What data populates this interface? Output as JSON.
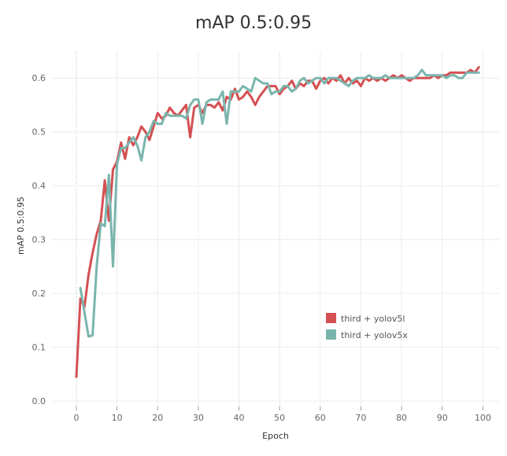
{
  "chart_data": {
    "type": "line",
    "title": "mAP 0.5:0.95",
    "xlabel": "Epoch",
    "ylabel": "mAP 0.5:0.95",
    "xlim": [
      -6,
      104
    ],
    "ylim": [
      -0.01,
      0.65
    ],
    "xticks": [
      0,
      10,
      20,
      30,
      40,
      50,
      60,
      70,
      80,
      90,
      100
    ],
    "yticks": [
      0.0,
      0.1,
      0.2,
      0.3,
      0.4,
      0.5,
      0.6
    ],
    "grid": true,
    "legend_position": "right",
    "series": [
      {
        "name": "third + yolov5l",
        "color": "#d45052",
        "points": [
          [
            0,
            0.045
          ],
          [
            1,
            0.19
          ],
          [
            2,
            0.175
          ],
          [
            3,
            0.235
          ],
          [
            4,
            0.275
          ],
          [
            5,
            0.31
          ],
          [
            6,
            0.335
          ],
          [
            7,
            0.41
          ],
          [
            8,
            0.335
          ],
          [
            9,
            0.43
          ],
          [
            10,
            0.445
          ],
          [
            11,
            0.48
          ],
          [
            12,
            0.45
          ],
          [
            13,
            0.49
          ],
          [
            14,
            0.475
          ],
          [
            15,
            0.49
          ],
          [
            16,
            0.51
          ],
          [
            17,
            0.5
          ],
          [
            18,
            0.485
          ],
          [
            19,
            0.51
          ],
          [
            20,
            0.535
          ],
          [
            21,
            0.525
          ],
          [
            22,
            0.53
          ],
          [
            23,
            0.545
          ],
          [
            24,
            0.535
          ],
          [
            25,
            0.53
          ],
          [
            26,
            0.54
          ],
          [
            27,
            0.55
          ],
          [
            28,
            0.49
          ],
          [
            29,
            0.545
          ],
          [
            30,
            0.55
          ],
          [
            31,
            0.535
          ],
          [
            32,
            0.55
          ],
          [
            33,
            0.55
          ],
          [
            34,
            0.545
          ],
          [
            35,
            0.555
          ],
          [
            36,
            0.54
          ],
          [
            37,
            0.565
          ],
          [
            38,
            0.56
          ],
          [
            39,
            0.58
          ],
          [
            40,
            0.56
          ],
          [
            41,
            0.565
          ],
          [
            42,
            0.575
          ],
          [
            43,
            0.565
          ],
          [
            44,
            0.55
          ],
          [
            45,
            0.565
          ],
          [
            46,
            0.575
          ],
          [
            47,
            0.585
          ],
          [
            48,
            0.585
          ],
          [
            49,
            0.585
          ],
          [
            50,
            0.57
          ],
          [
            51,
            0.58
          ],
          [
            52,
            0.585
          ],
          [
            53,
            0.595
          ],
          [
            54,
            0.58
          ],
          [
            55,
            0.59
          ],
          [
            56,
            0.585
          ],
          [
            57,
            0.595
          ],
          [
            58,
            0.595
          ],
          [
            59,
            0.58
          ],
          [
            60,
            0.595
          ],
          [
            61,
            0.6
          ],
          [
            62,
            0.59
          ],
          [
            63,
            0.6
          ],
          [
            64,
            0.595
          ],
          [
            65,
            0.605
          ],
          [
            66,
            0.59
          ],
          [
            67,
            0.6
          ],
          [
            68,
            0.59
          ],
          [
            69,
            0.595
          ],
          [
            70,
            0.585
          ],
          [
            71,
            0.6
          ],
          [
            72,
            0.595
          ],
          [
            73,
            0.6
          ],
          [
            74,
            0.595
          ],
          [
            75,
            0.6
          ],
          [
            76,
            0.595
          ],
          [
            77,
            0.6
          ],
          [
            78,
            0.605
          ],
          [
            79,
            0.6
          ],
          [
            80,
            0.605
          ],
          [
            81,
            0.6
          ],
          [
            82,
            0.595
          ],
          [
            83,
            0.6
          ],
          [
            84,
            0.6
          ],
          [
            85,
            0.6
          ],
          [
            86,
            0.6
          ],
          [
            87,
            0.6
          ],
          [
            88,
            0.605
          ],
          [
            89,
            0.6
          ],
          [
            90,
            0.605
          ],
          [
            91,
            0.605
          ],
          [
            92,
            0.61
          ],
          [
            93,
            0.61
          ],
          [
            94,
            0.61
          ],
          [
            95,
            0.61
          ],
          [
            96,
            0.61
          ],
          [
            97,
            0.615
          ],
          [
            98,
            0.61
          ],
          [
            99,
            0.62
          ]
        ]
      },
      {
        "name": "third + yolov5x",
        "color": "#7ab5ad",
        "points": [
          [
            1,
            0.21
          ],
          [
            2,
            0.165
          ],
          [
            3,
            0.12
          ],
          [
            4,
            0.122
          ],
          [
            5,
            0.25
          ],
          [
            6,
            0.33
          ],
          [
            7,
            0.325
          ],
          [
            8,
            0.42
          ],
          [
            9,
            0.25
          ],
          [
            10,
            0.44
          ],
          [
            11,
            0.47
          ],
          [
            12,
            0.47
          ],
          [
            13,
            0.48
          ],
          [
            14,
            0.49
          ],
          [
            15,
            0.475
          ],
          [
            16,
            0.447
          ],
          [
            17,
            0.49
          ],
          [
            18,
            0.5
          ],
          [
            19,
            0.52
          ],
          [
            20,
            0.515
          ],
          [
            21,
            0.515
          ],
          [
            22,
            0.535
          ],
          [
            23,
            0.53
          ],
          [
            24,
            0.53
          ],
          [
            25,
            0.53
          ],
          [
            26,
            0.53
          ],
          [
            27,
            0.525
          ],
          [
            28,
            0.55
          ],
          [
            29,
            0.56
          ],
          [
            30,
            0.56
          ],
          [
            31,
            0.515
          ],
          [
            32,
            0.555
          ],
          [
            33,
            0.56
          ],
          [
            34,
            0.56
          ],
          [
            35,
            0.56
          ],
          [
            36,
            0.575
          ],
          [
            37,
            0.515
          ],
          [
            38,
            0.575
          ],
          [
            39,
            0.575
          ],
          [
            40,
            0.575
          ],
          [
            41,
            0.585
          ],
          [
            42,
            0.58
          ],
          [
            43,
            0.575
          ],
          [
            44,
            0.6
          ],
          [
            45,
            0.595
          ],
          [
            46,
            0.59
          ],
          [
            47,
            0.59
          ],
          [
            48,
            0.57
          ],
          [
            49,
            0.575
          ],
          [
            50,
            0.575
          ],
          [
            51,
            0.585
          ],
          [
            52,
            0.585
          ],
          [
            53,
            0.575
          ],
          [
            54,
            0.58
          ],
          [
            55,
            0.595
          ],
          [
            56,
            0.6
          ],
          [
            57,
            0.59
          ],
          [
            58,
            0.595
          ],
          [
            59,
            0.6
          ],
          [
            60,
            0.6
          ],
          [
            61,
            0.59
          ],
          [
            62,
            0.6
          ],
          [
            63,
            0.6
          ],
          [
            64,
            0.6
          ],
          [
            65,
            0.595
          ],
          [
            66,
            0.59
          ],
          [
            67,
            0.585
          ],
          [
            68,
            0.595
          ],
          [
            69,
            0.6
          ],
          [
            70,
            0.6
          ],
          [
            71,
            0.6
          ],
          [
            72,
            0.605
          ],
          [
            73,
            0.6
          ],
          [
            74,
            0.6
          ],
          [
            75,
            0.6
          ],
          [
            76,
            0.605
          ],
          [
            77,
            0.6
          ],
          [
            78,
            0.6
          ],
          [
            79,
            0.6
          ],
          [
            80,
            0.6
          ],
          [
            81,
            0.6
          ],
          [
            82,
            0.6
          ],
          [
            83,
            0.6
          ],
          [
            84,
            0.605
          ],
          [
            85,
            0.615
          ],
          [
            86,
            0.605
          ],
          [
            87,
            0.605
          ],
          [
            88,
            0.605
          ],
          [
            89,
            0.605
          ],
          [
            90,
            0.605
          ],
          [
            91,
            0.6
          ],
          [
            92,
            0.605
          ],
          [
            93,
            0.605
          ],
          [
            94,
            0.6
          ],
          [
            95,
            0.6
          ],
          [
            96,
            0.61
          ],
          [
            97,
            0.61
          ],
          [
            98,
            0.61
          ],
          [
            99,
            0.61
          ]
        ]
      }
    ]
  }
}
